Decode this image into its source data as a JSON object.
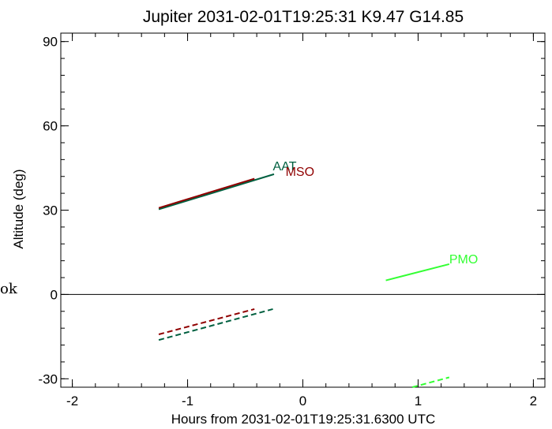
{
  "edge_text": "ok",
  "chart_data": {
    "type": "line",
    "title": "Jupiter 2031-02-01T19:25:31  K9.47  G14.85",
    "xlabel": "Hours from 2031-02-01T19:25:31.6300 UTC",
    "ylabel": "Altitude (deg)",
    "xlim": [
      -2.1,
      2.1
    ],
    "ylim": [
      -33,
      93
    ],
    "x_ticks": [
      -2,
      -1,
      0,
      1,
      2
    ],
    "y_ticks": [
      -30,
      0,
      30,
      60,
      90
    ],
    "x_minor_step": 0.2,
    "y_minor_step": 6,
    "zero_line": 0,
    "grid": false,
    "series": [
      {
        "name": "AAT",
        "color": "#006040",
        "style": "solid",
        "x": [
          -1.25,
          -0.25
        ],
        "y": [
          30.3,
          42.8
        ],
        "label_at": [
          -0.26,
          44.2
        ]
      },
      {
        "name": "",
        "color": "#006040",
        "style": "dashed",
        "x": [
          -1.25,
          -0.26
        ],
        "y": [
          -16.2,
          -5.2
        ]
      },
      {
        "name": "MSO",
        "color": "#900000",
        "style": "solid",
        "x": [
          -1.25,
          -0.42
        ],
        "y": [
          30.8,
          41.2
        ],
        "label_at": [
          -0.15,
          42.2
        ]
      },
      {
        "name": "",
        "color": "#900000",
        "style": "dashed",
        "x": [
          -1.25,
          -0.42
        ],
        "y": [
          -14.2,
          -5.2
        ]
      },
      {
        "name": "PMO",
        "color": "#33ff33",
        "style": "solid",
        "x": [
          0.72,
          1.27
        ],
        "y": [
          5.0,
          10.8
        ],
        "label_at": [
          1.27,
          11.0
        ]
      },
      {
        "name": "",
        "color": "#33ff33",
        "style": "dashed",
        "x": [
          0.95,
          1.27
        ],
        "y": [
          -33.0,
          -29.5
        ]
      }
    ]
  }
}
